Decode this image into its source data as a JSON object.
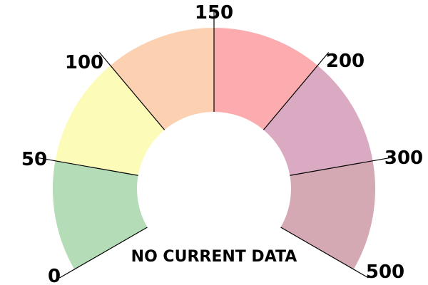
{
  "chart_data": {
    "type": "gauge",
    "title": "",
    "ticks": [
      "0",
      "50",
      "100",
      "150",
      "200",
      "300",
      "500"
    ],
    "bands": [
      {
        "from": "0",
        "to": "50",
        "color": "#b3dcb7"
      },
      {
        "from": "50",
        "to": "100",
        "color": "#fdfbb8"
      },
      {
        "from": "100",
        "to": "150",
        "color": "#fcd1b1"
      },
      {
        "from": "150",
        "to": "200",
        "color": "#fcacaf"
      },
      {
        "from": "200",
        "to": "300",
        "color": "#daaac3"
      },
      {
        "from": "300",
        "to": "500",
        "color": "#d4a9b3"
      }
    ],
    "value": null,
    "status_text": "NO CURRENT DATA"
  }
}
